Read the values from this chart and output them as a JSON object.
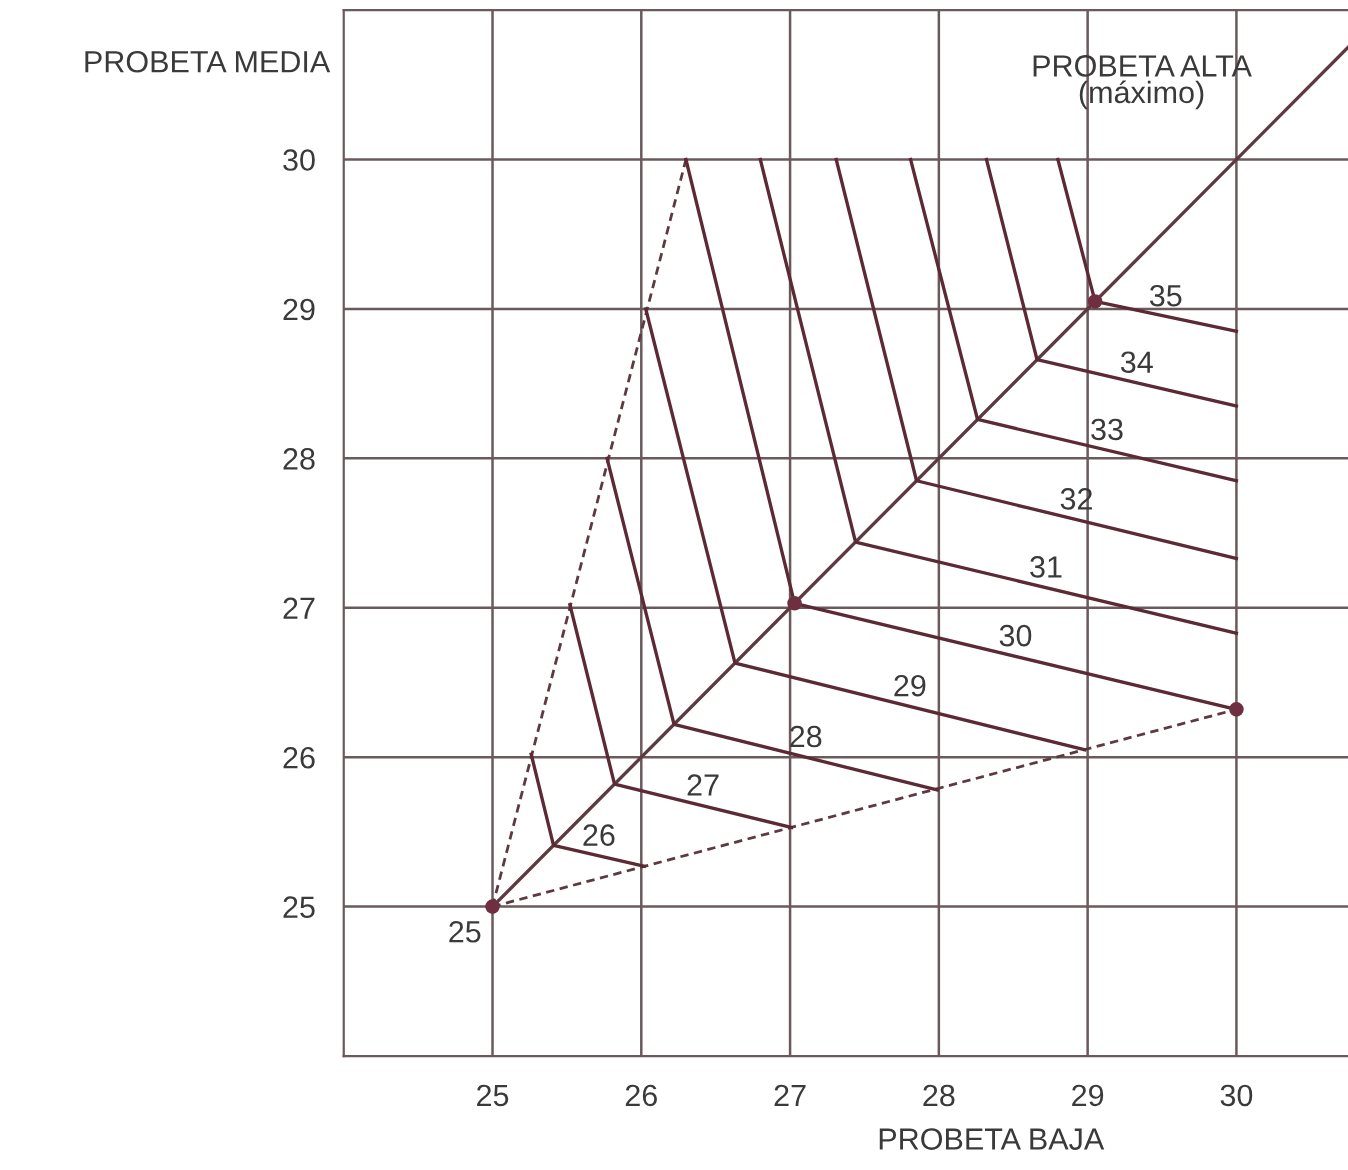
{
  "chart_data": {
    "type": "line",
    "xlabel": "PROBETA BAJA",
    "ylabel": "PROBETA MEDIA",
    "xlim": [
      24,
      30.75
    ],
    "ylim": [
      24,
      31
    ],
    "xticks": [
      25,
      26,
      27,
      28,
      29,
      30
    ],
    "yticks": [
      25,
      26,
      27,
      28,
      29,
      30
    ],
    "grid": true,
    "marker": "none",
    "series": [
      {
        "name": "PROBETA ALTA\n(máximo)",
        "color": "#5c3a40",
        "x": [
          25,
          30.75
        ],
        "values": [
          25,
          30.75
        ]
      },
      {
        "color": "#5c3a40",
        "line_style": "dashed",
        "x": [
          25,
          26.3
        ],
        "values": [
          25,
          30
        ]
      },
      {
        "color": "#5c3a40",
        "line_style": "dashed",
        "x": [
          25,
          30
        ],
        "values": [
          25,
          26.32
        ]
      },
      {
        "name": "26",
        "color": "#5c2a35",
        "x": [
          25.26,
          25.41,
          26.02
        ],
        "values": [
          26.02,
          25.41,
          25.27
        ]
      },
      {
        "name": "27",
        "color": "#5c2a35",
        "x": [
          25.52,
          25.82,
          27.01
        ],
        "values": [
          27.02,
          25.82,
          25.53
        ]
      },
      {
        "name": "28",
        "color": "#5c2a35",
        "x": [
          25.77,
          26.22,
          27.99
        ],
        "values": [
          28.0,
          26.22,
          25.78
        ]
      },
      {
        "name": "29",
        "color": "#5c2a35",
        "x": [
          26.03,
          26.63,
          28.98
        ],
        "values": [
          29.0,
          26.63,
          26.05
        ]
      },
      {
        "name": "30",
        "color": "#5c2a35",
        "x": [
          26.3,
          27.03,
          30.0
        ],
        "values": [
          30.0,
          27.03,
          26.32
        ]
      },
      {
        "name": "31",
        "color": "#5c2a35",
        "x": [
          26.8,
          27.44,
          30.0
        ],
        "values": [
          30.0,
          27.44,
          26.83
        ]
      },
      {
        "name": "32",
        "color": "#5c2a35",
        "x": [
          27.31,
          27.85,
          30.0
        ],
        "values": [
          30.0,
          27.85,
          27.33
        ]
      },
      {
        "name": "33",
        "color": "#5c2a35",
        "x": [
          27.81,
          28.26,
          30.0
        ],
        "values": [
          30.0,
          28.26,
          27.85
        ]
      },
      {
        "name": "34",
        "color": "#5c2a35",
        "x": [
          28.32,
          28.66,
          30.0
        ],
        "values": [
          30.0,
          28.66,
          28.35
        ]
      },
      {
        "name": "35",
        "color": "#5c2a35",
        "x": [
          28.8,
          29.05,
          30.0
        ],
        "values": [
          30.0,
          29.05,
          28.85
        ]
      },
      {
        "type": "scatter",
        "marker": "circle",
        "color": "#6e3040",
        "x": [
          25,
          27.03,
          29.05,
          30.0
        ],
        "values": [
          25,
          27.03,
          29.05,
          26.32
        ]
      }
    ],
    "annotations": [
      {
        "text": "25",
        "x": 25,
        "y": 25
      }
    ]
  }
}
